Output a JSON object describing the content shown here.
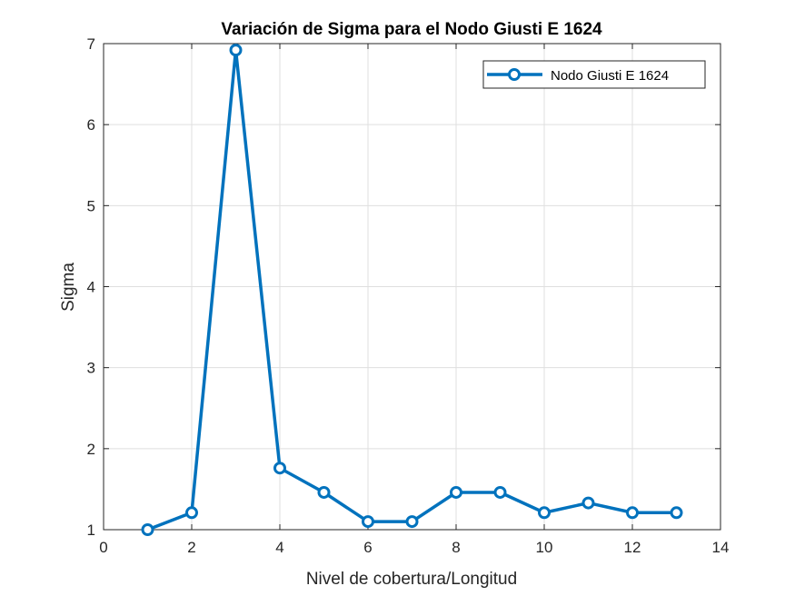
{
  "chart_data": {
    "type": "line",
    "title": "Variación de Sigma para el Nodo Giusti E 1624",
    "xlabel": "Nivel de cobertura/Longitud",
    "ylabel": "Sigma",
    "xlim": [
      0,
      14
    ],
    "ylim": [
      1,
      7
    ],
    "xticks": [
      0,
      2,
      4,
      6,
      8,
      10,
      12,
      14
    ],
    "yticks": [
      1,
      2,
      3,
      4,
      5,
      6,
      7
    ],
    "grid": true,
    "legend_position": "top-right",
    "series": [
      {
        "name": "Nodo Giusti E 1624",
        "color": "#0072BD",
        "marker": "circle",
        "x": [
          1,
          2,
          3,
          4,
          5,
          6,
          7,
          8,
          9,
          10,
          11,
          12,
          13
        ],
        "y": [
          1.0,
          1.21,
          6.92,
          1.76,
          1.46,
          1.1,
          1.1,
          1.46,
          1.46,
          1.21,
          1.33,
          1.21,
          1.21
        ]
      }
    ]
  }
}
